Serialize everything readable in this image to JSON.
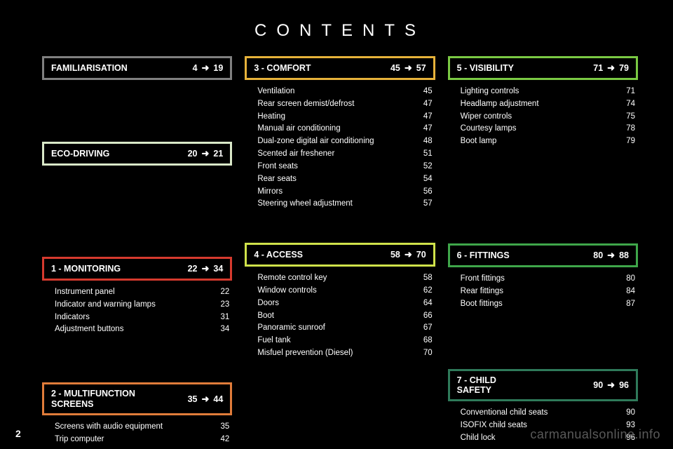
{
  "title": "CONTENTS",
  "pagenum": "2",
  "watermark": "carmanualsonline.info",
  "colors": {
    "familiarisation": "#808080",
    "eco": "#d9e8c8",
    "monitoring": "#d63a2e",
    "multifunction": "#e07c3a",
    "comfort": "#e6b23a",
    "access": "#cfe24a",
    "visibility": "#7ac943",
    "fittings": "#3fa64a",
    "child": "#2f7a5a"
  },
  "columns": [
    {
      "blocks": [
        {
          "id": "familiarisation",
          "title": "FAMILIARISATION",
          "from": "4",
          "to": "19",
          "colorKey": "familiarisation",
          "entries": [],
          "spaceAfter": 70
        },
        {
          "id": "eco",
          "title": "ECO-DRIVING",
          "from": "20",
          "to": "21",
          "colorKey": "eco",
          "entries": [],
          "spaceAfter": 112
        },
        {
          "id": "monitoring",
          "title": "1 - MONITORING",
          "from": "22",
          "to": "34",
          "colorKey": "monitoring",
          "entries": [
            {
              "label": "Instrument panel",
              "page": "22"
            },
            {
              "label": "Indicator and warning lamps",
              "page": "23"
            },
            {
              "label": "Indicators",
              "page": "31"
            },
            {
              "label": "Adjustment buttons",
              "page": "34"
            }
          ],
          "spaceAfter": 48
        },
        {
          "id": "multifunction",
          "title": "2 - MULTIFUNCTION\n      SCREENS",
          "from": "35",
          "to": "44",
          "colorKey": "multifunction",
          "entries": [
            {
              "label": "Screens with audio equipment",
              "page": "35"
            },
            {
              "label": "Trip computer",
              "page": "42"
            }
          ]
        }
      ]
    },
    {
      "blocks": [
        {
          "id": "comfort",
          "title": "3 - COMFORT",
          "from": "45",
          "to": "57",
          "colorKey": "comfort",
          "entries": [
            {
              "label": "Ventilation",
              "page": "45"
            },
            {
              "label": "Rear screen demist/defrost",
              "page": "47"
            },
            {
              "label": "Heating",
              "page": "47"
            },
            {
              "label": "Manual air conditioning",
              "page": "47"
            },
            {
              "label": "Dual-zone digital air conditioning",
              "page": "48"
            },
            {
              "label": "Scented air freshener",
              "page": "51"
            },
            {
              "label": "Front seats",
              "page": "52"
            },
            {
              "label": "Rear seats",
              "page": "54"
            },
            {
              "label": "Mirrors",
              "page": "56"
            },
            {
              "label": "Steering wheel adjustment",
              "page": "57"
            }
          ],
          "spaceAfter": 28
        },
        {
          "id": "access",
          "title": "4 - ACCESS",
          "from": "58",
          "to": "70",
          "colorKey": "access",
          "entries": [
            {
              "label": "Remote control key",
              "page": "58"
            },
            {
              "label": "Window controls",
              "page": "62"
            },
            {
              "label": "Doors",
              "page": "64"
            },
            {
              "label": "Boot",
              "page": "66"
            },
            {
              "label": "Panoramic sunroof",
              "page": "67"
            },
            {
              "label": "Fuel tank",
              "page": "68"
            },
            {
              "label": "Misfuel prevention (Diesel)",
              "page": "70"
            }
          ]
        }
      ]
    },
    {
      "blocks": [
        {
          "id": "visibility",
          "title": "5 - VISIBILITY",
          "from": "71",
          "to": "79",
          "colorKey": "visibility",
          "entries": [
            {
              "label": "Lighting controls",
              "page": "71"
            },
            {
              "label": "Headlamp adjustment",
              "page": "74"
            },
            {
              "label": "Wiper controls",
              "page": "75"
            },
            {
              "label": "Courtesy lamps",
              "page": "78"
            },
            {
              "label": "Boot lamp",
              "page": "79"
            }
          ],
          "spaceAfter": 118
        },
        {
          "id": "fittings",
          "title": "6 - FITTINGS",
          "from": "80",
          "to": "88",
          "colorKey": "fittings",
          "entries": [
            {
              "label": "Front fittings",
              "page": "80"
            },
            {
              "label": "Rear fittings",
              "page": "84"
            },
            {
              "label": "Boot fittings",
              "page": "87"
            }
          ],
          "spaceAfter": 65
        },
        {
          "id": "child",
          "title": "7 - CHILD\n      SAFETY",
          "from": "90",
          "to": "96",
          "colorKey": "child",
          "entries": [
            {
              "label": "Conventional child seats",
              "page": "90"
            },
            {
              "label": "ISOFIX child seats",
              "page": "93"
            },
            {
              "label": "Child lock",
              "page": "96"
            }
          ]
        }
      ]
    }
  ]
}
